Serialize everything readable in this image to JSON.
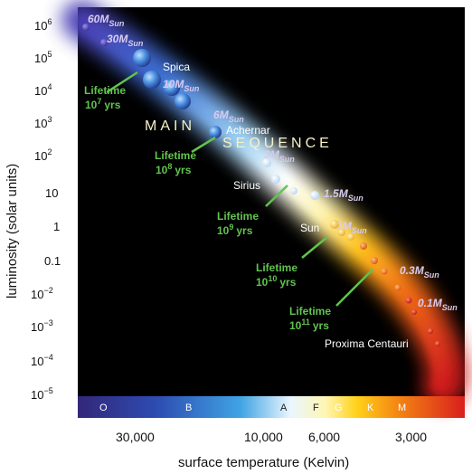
{
  "axes": {
    "y_title": "luminosity (solar units)",
    "x_title": "surface temperature (Kelvin)",
    "y_ticks": [
      {
        "base": "10",
        "exp": "6"
      },
      {
        "base": "10",
        "exp": "5"
      },
      {
        "base": "10",
        "exp": "4"
      },
      {
        "base": "10",
        "exp": "3"
      },
      {
        "base": "10",
        "exp": "2"
      },
      {
        "base": "10",
        "exp": ""
      },
      {
        "base": "1",
        "exp": ""
      },
      {
        "base": "0.1",
        "exp": ""
      },
      {
        "base": "10",
        "exp": "−2"
      },
      {
        "base": "10",
        "exp": "−3"
      },
      {
        "base": "10",
        "exp": "−4"
      },
      {
        "base": "10",
        "exp": "−5"
      }
    ],
    "x_ticks": [
      "30,000",
      "10,000",
      "6,000",
      "3,000"
    ]
  },
  "spectral_classes": [
    "O",
    "B",
    "A",
    "F",
    "G",
    "K",
    "M"
  ],
  "main_sequence_label": {
    "word1": "MAIN",
    "word2": "SEQUENCE"
  },
  "star_names": [
    "Spica",
    "Achernar",
    "Sirius",
    "Sun",
    "Proxima Centauri"
  ],
  "mass_labels": [
    {
      "num": "60",
      "unit": "M",
      "sub": "Sun"
    },
    {
      "num": "30",
      "unit": "M",
      "sub": "Sun"
    },
    {
      "num": "10",
      "unit": "M",
      "sub": "Sun"
    },
    {
      "num": "6",
      "unit": "M",
      "sub": "Sun"
    },
    {
      "num": "3",
      "unit": "M",
      "sub": "Sun"
    },
    {
      "num": "1.5",
      "unit": "M",
      "sub": "Sun"
    },
    {
      "num": "1",
      "unit": "M",
      "sub": "Sun"
    },
    {
      "num": "0.3",
      "unit": "M",
      "sub": "Sun"
    },
    {
      "num": "0.1",
      "unit": "M",
      "sub": "Sun"
    }
  ],
  "lifetimes": [
    {
      "line1": "Lifetime",
      "base": "10",
      "exp": "7",
      "unit": "yrs"
    },
    {
      "line1": "Lifetime",
      "base": "10",
      "exp": "8",
      "unit": "yrs"
    },
    {
      "line1": "Lifetime",
      "base": "10",
      "exp": "9",
      "unit": "yrs"
    },
    {
      "line1": "Lifetime",
      "base": "10",
      "exp": "10",
      "unit": "yrs"
    },
    {
      "line1": "Lifetime",
      "base": "10",
      "exp": "11",
      "unit": "yrs"
    }
  ],
  "colors": {
    "background": "#000000",
    "axis_text": "#111111",
    "lifetime_green": "#62c34f",
    "mass_lavender": "#d7cbef"
  }
}
